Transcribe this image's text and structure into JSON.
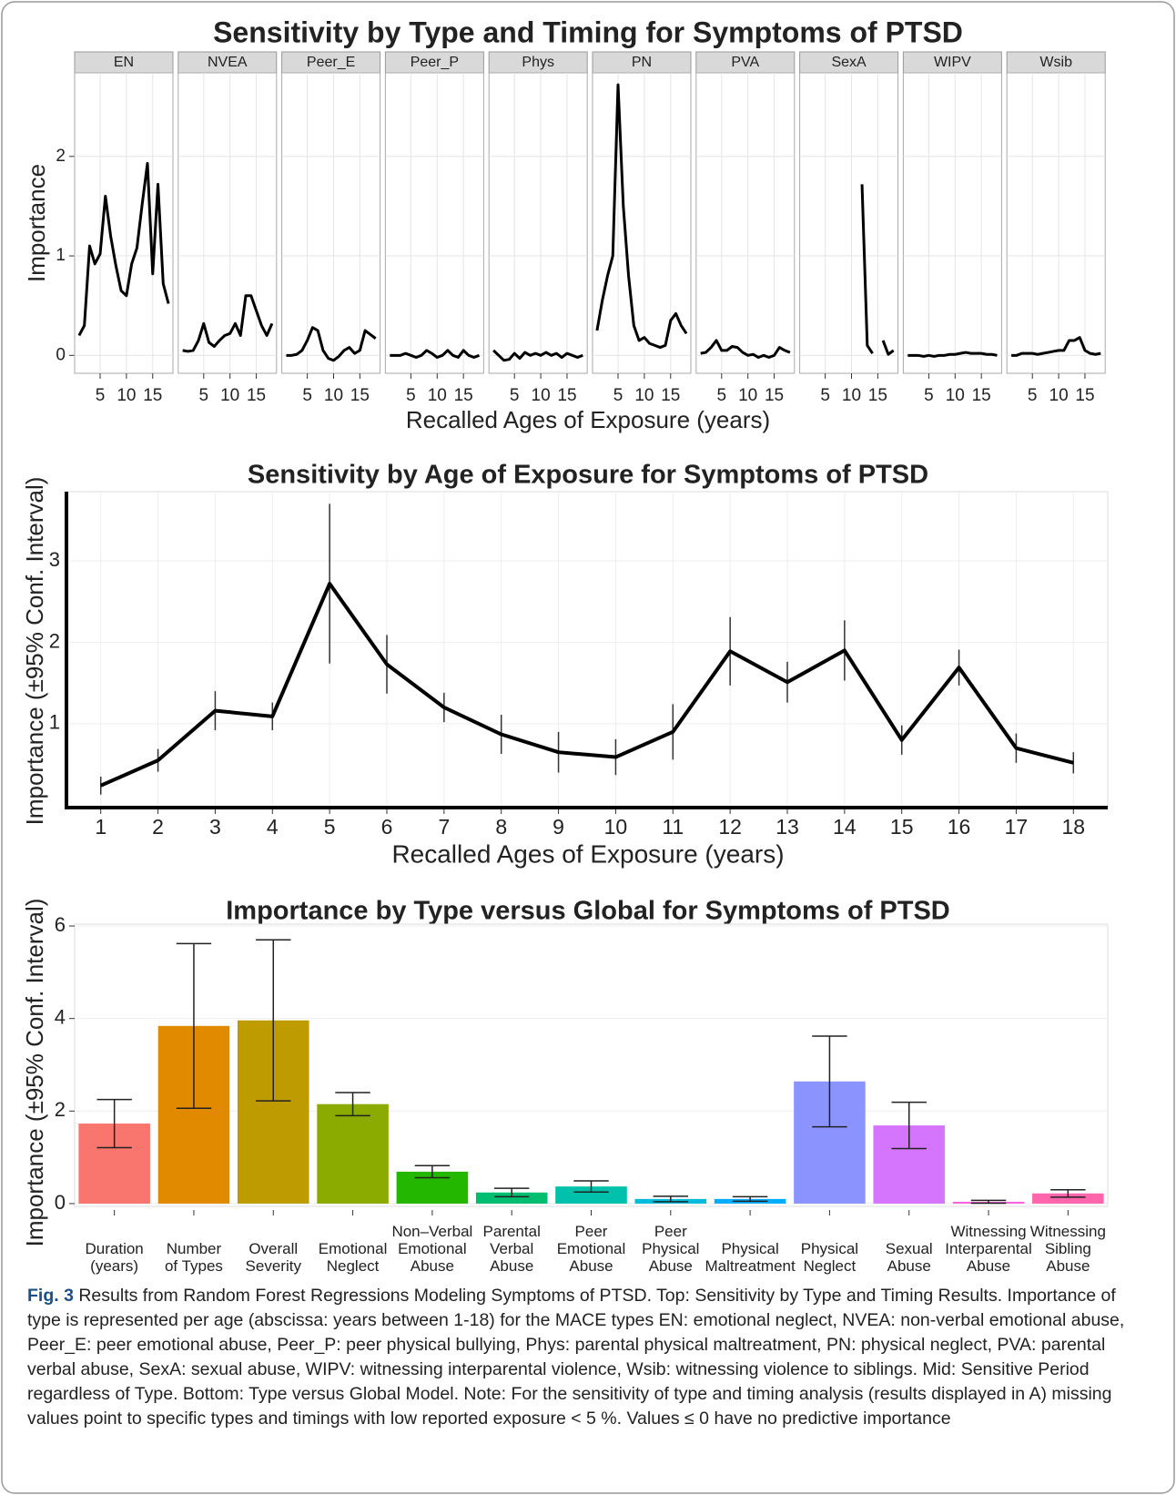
{
  "chart_data": [
    {
      "type": "facet_line",
      "title": "Sensitivity by Type and Timing for Symptoms of PTSD",
      "x_label": "Recalled Ages of Exposure (years)",
      "y_label": "Importance",
      "x": [
        1,
        2,
        3,
        4,
        5,
        6,
        7,
        8,
        9,
        10,
        11,
        12,
        13,
        14,
        15,
        16,
        17,
        18
      ],
      "xlim": [
        0.15,
        18.85
      ],
      "ylim": [
        -0.18,
        2.84
      ],
      "xticks": [
        5,
        10,
        15
      ],
      "yticks": [
        0,
        1,
        2
      ],
      "grid": true,
      "color": "#000000",
      "series": [
        {
          "name": "EN",
          "values": [
            0.2,
            0.3,
            1.1,
            0.92,
            1.02,
            1.6,
            1.2,
            0.9,
            0.65,
            0.6,
            0.92,
            1.08,
            1.52,
            1.93,
            0.82,
            1.72,
            0.72,
            0.52
          ]
        },
        {
          "name": "NVEA",
          "values": [
            0.05,
            0.04,
            0.05,
            0.15,
            0.32,
            0.13,
            0.09,
            0.15,
            0.2,
            0.22,
            0.32,
            0.2,
            0.6,
            0.6,
            0.45,
            0.3,
            0.2,
            0.32
          ]
        },
        {
          "name": "Peer_E",
          "values": [
            0,
            0,
            0.01,
            0.05,
            0.15,
            0.28,
            0.25,
            0.05,
            -0.03,
            -0.05,
            -0.01,
            0.05,
            0.08,
            0.02,
            0.05,
            0.25,
            0.21,
            0.17
          ]
        },
        {
          "name": "Peer_P",
          "values": [
            0,
            0,
            0,
            0.02,
            0,
            -0.02,
            0,
            0.05,
            0.02,
            -0.02,
            0,
            0.05,
            0,
            -0.02,
            0.05,
            0,
            -0.02,
            0
          ]
        },
        {
          "name": "Phys",
          "values": [
            0.05,
            0,
            -0.05,
            -0.04,
            0.02,
            -0.03,
            0.03,
            0,
            0.02,
            0,
            0.03,
            0,
            0.02,
            -0.02,
            0.02,
            0,
            -0.02,
            0
          ]
        },
        {
          "name": "PN",
          "values": [
            0.25,
            0.55,
            0.8,
            1.0,
            2.72,
            1.5,
            0.8,
            0.3,
            0.15,
            0.18,
            0.12,
            0.1,
            0.08,
            0.1,
            0.35,
            0.42,
            0.3,
            0.22
          ]
        },
        {
          "name": "PVA",
          "values": [
            0.02,
            0.03,
            0.08,
            0.15,
            0.05,
            0.05,
            0.09,
            0.08,
            0.03,
            0,
            0.01,
            -0.02,
            0,
            -0.02,
            0,
            0.08,
            0.05,
            0.03
          ]
        },
        {
          "name": "SexA",
          "values": [
            null,
            null,
            null,
            null,
            null,
            null,
            null,
            null,
            null,
            null,
            null,
            1.72,
            0.1,
            0.02,
            null,
            0.15,
            0.01,
            0.05
          ]
        },
        {
          "name": "WIPV",
          "values": [
            0,
            0,
            0,
            -0.01,
            0,
            -0.01,
            0,
            0,
            0.01,
            0.01,
            0.02,
            0.03,
            0.02,
            0.02,
            0.02,
            0.01,
            0.01,
            0
          ]
        },
        {
          "name": "Wsib",
          "values": [
            0,
            0,
            0.02,
            0.02,
            0.02,
            0.01,
            0.02,
            0.03,
            0.04,
            0.05,
            0.05,
            0.15,
            0.15,
            0.18,
            0.05,
            0.02,
            0.01,
            0.02
          ]
        }
      ]
    },
    {
      "type": "line",
      "title": "Sensitivity by Age of Exposure for Symptoms of PTSD",
      "x_label": "Recalled Ages of Exposure (years)",
      "y_label": "Importance (±95% Conf. Interval)",
      "x": [
        1,
        2,
        3,
        4,
        5,
        6,
        7,
        8,
        9,
        10,
        11,
        12,
        13,
        14,
        15,
        16,
        17,
        18
      ],
      "xlim": [
        0.4,
        18.6
      ],
      "ylim": [
        -0.03,
        3.85
      ],
      "xticks": [
        1,
        2,
        3,
        4,
        5,
        6,
        7,
        8,
        9,
        10,
        11,
        12,
        13,
        14,
        15,
        16,
        17,
        18
      ],
      "yticks": [
        1,
        2,
        3
      ],
      "grid": true,
      "color": "#000000",
      "values": [
        0.24,
        0.55,
        1.16,
        1.09,
        2.72,
        1.73,
        1.2,
        0.87,
        0.65,
        0.59,
        0.9,
        1.89,
        1.51,
        1.9,
        0.8,
        1.69,
        0.7,
        0.52
      ],
      "errors": [
        0.11,
        0.14,
        0.24,
        0.17,
        0.98,
        0.36,
        0.18,
        0.24,
        0.25,
        0.22,
        0.34,
        0.42,
        0.25,
        0.37,
        0.18,
        0.22,
        0.18,
        0.13
      ]
    },
    {
      "type": "bar",
      "title": "Importance by Type versus Global for Symptoms of PTSD",
      "y_label": "Importance (±95% Conf. Interval)",
      "categories": [
        "Duration\n(years)",
        "Number\nof Types",
        "Overall\nSeverity",
        "Emotional\nNeglect",
        "Non–Verbal\nEmotional\nAbuse",
        "Parental\nVerbal\nAbuse",
        "Peer\nEmotional\nAbuse",
        "Peer\nPhysical\nAbuse",
        "Physical\nMaltreatment",
        "Physical\nNeglect",
        "Sexual\nAbuse",
        "Witnessing\nInterparental\nAbuse",
        "Witnessing\nSibling\nAbuse"
      ],
      "values": [
        1.73,
        3.84,
        3.96,
        2.15,
        0.69,
        0.24,
        0.37,
        0.1,
        0.1,
        2.64,
        1.69,
        0.04,
        0.22
      ],
      "errors": [
        0.52,
        1.78,
        1.74,
        0.25,
        0.13,
        0.09,
        0.12,
        0.06,
        0.05,
        0.98,
        0.5,
        0.03,
        0.08
      ],
      "colors": [
        "#F8766D",
        "#E18A00",
        "#BE9C00",
        "#8CAB00",
        "#24B700",
        "#00BE70",
        "#00C1AB",
        "#00BBDA",
        "#00ACFC",
        "#8B93FF",
        "#D575FE",
        "#F962DD",
        "#FF65AC"
      ],
      "ylim": [
        -0.06,
        6.04
      ],
      "yticks": [
        0,
        2,
        4,
        6
      ],
      "grid": true
    }
  ],
  "caption": {
    "label": "Fig. 3",
    "text": "Results from Random Forest Regressions Modeling Symptoms of PTSD. Top: Sensitivity by Type and Timing Results. Importance of type is represented per age (abscissa: years between 1-18) for the MACE types EN: emotional neglect, NVEA: non-verbal emotional abuse, Peer_E: peer emotional abuse, Peer_P: peer physical bullying, Phys: parental physical maltreatment, PN: physical neglect, PVA: parental verbal abuse, SexA: sexual abuse, WIPV: witnessing interparental violence, Wsib: witnessing violence to siblings. Mid: Sensitive Period regardless of Type. Bottom: Type versus Global Model. Note: For the sensitivity of type and timing analysis (results displayed in A) missing values point to specific types and timings with low reported exposure < 5 %. Values ≤ 0 have no predictive importance"
  }
}
